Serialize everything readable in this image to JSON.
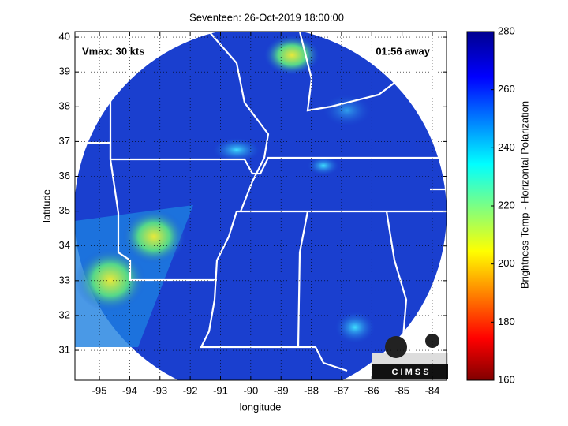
{
  "chart_data": {
    "type": "map",
    "title": "Seventeen: 26-Oct-2019 18:00:00",
    "xlabel": "longitude",
    "ylabel": "latitude",
    "annotations": [
      "Vmax: 30 kts",
      "01:56 away"
    ],
    "logo": "C I M S S",
    "xlim": [
      -95.81,
      -83.53
    ],
    "ylim": [
      30.14,
      40.16
    ],
    "xticks": [
      -95,
      -94,
      -93,
      -92,
      -91,
      -90,
      -89,
      -88,
      -87,
      -86,
      -85,
      -84
    ],
    "yticks": [
      31,
      32,
      33,
      34,
      35,
      36,
      37,
      38,
      39,
      40
    ],
    "grid": true,
    "colorbar": {
      "label": "Brightness Temp - Horizontal Polarization",
      "lim": [
        160,
        280
      ],
      "ticks": [
        160,
        180,
        200,
        220,
        240,
        260,
        280
      ]
    }
  }
}
